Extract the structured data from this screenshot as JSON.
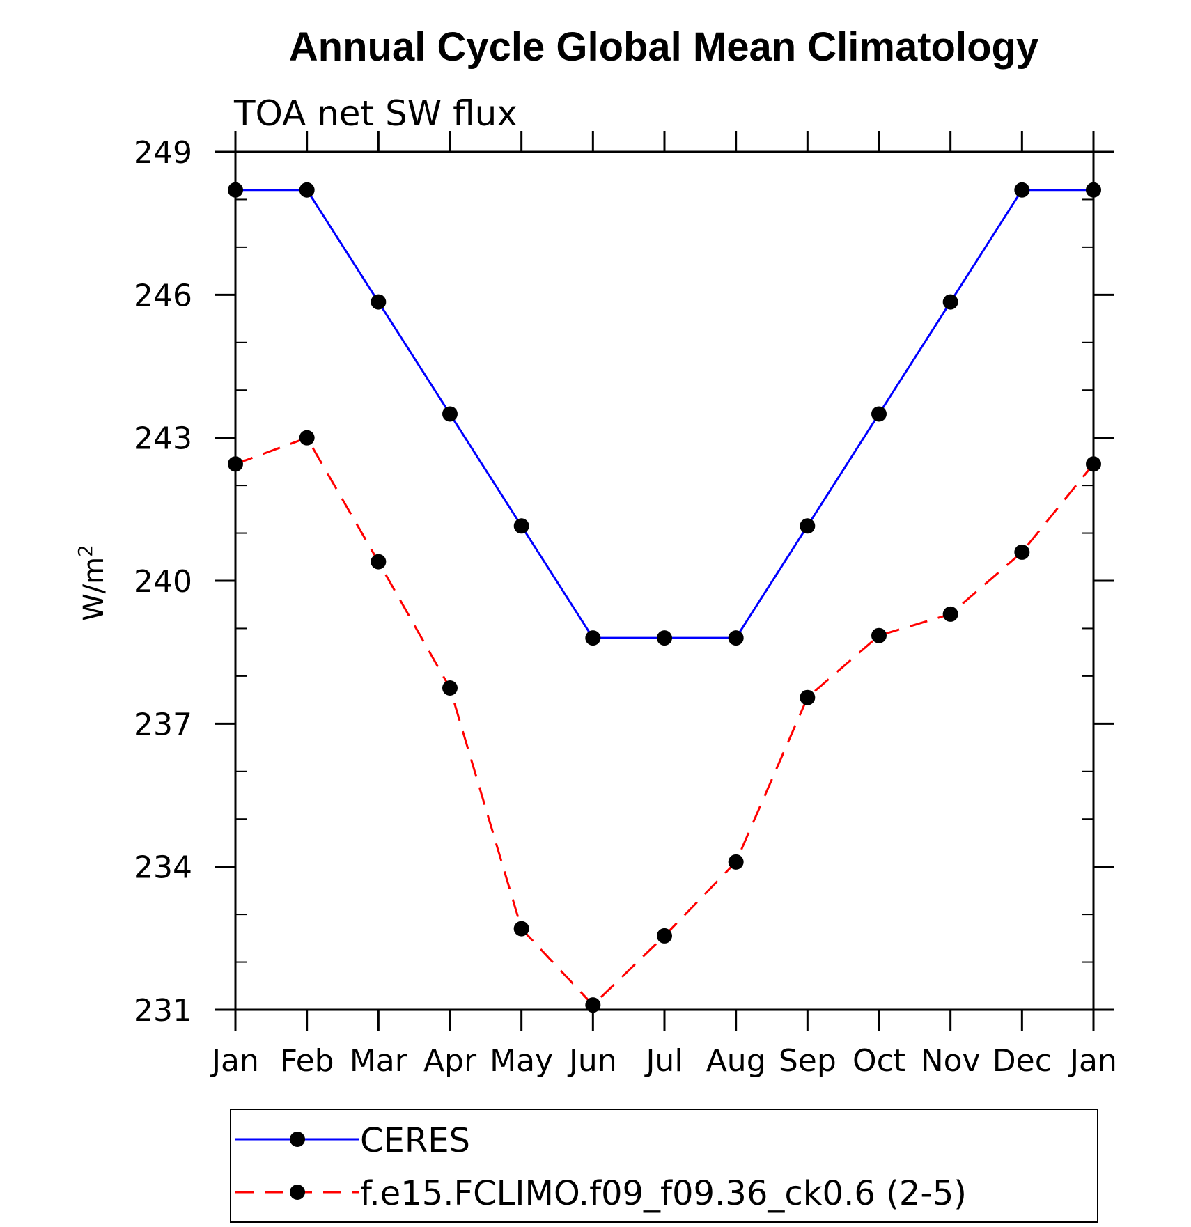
{
  "chart_data": {
    "type": "line",
    "title": "Annual Cycle Global Mean Climatology",
    "subtitle": "TOA net SW flux",
    "ylabel": "W/m",
    "ylabel_superscript": "2",
    "xlabel": "",
    "categories": [
      "Jan",
      "Feb",
      "Mar",
      "Apr",
      "May",
      "Jun",
      "Jul",
      "Aug",
      "Sep",
      "Oct",
      "Nov",
      "Dec",
      "Jan"
    ],
    "ylim": [
      231,
      249
    ],
    "yticks": [
      231,
      234,
      237,
      240,
      243,
      246,
      249
    ],
    "y_minor_step": 1,
    "grid": false,
    "legend_position": "bottom",
    "series": [
      {
        "name": "CERES",
        "color": "#0000ff",
        "style": "solid",
        "marker": "filled-circle",
        "values": [
          248.2,
          248.2,
          245.85,
          243.5,
          241.15,
          238.8,
          238.8,
          238.8,
          241.15,
          243.5,
          245.85,
          248.2,
          248.2
        ]
      },
      {
        "name": "f.e15.FCLIMO.f09_f09.36_ck0.6 (2-5)",
        "color": "#ff0000",
        "style": "dashed",
        "marker": "filled-circle",
        "values": [
          242.45,
          243.0,
          240.4,
          237.75,
          232.7,
          231.1,
          232.55,
          234.1,
          237.55,
          238.85,
          239.3,
          240.6,
          242.45
        ]
      }
    ]
  }
}
